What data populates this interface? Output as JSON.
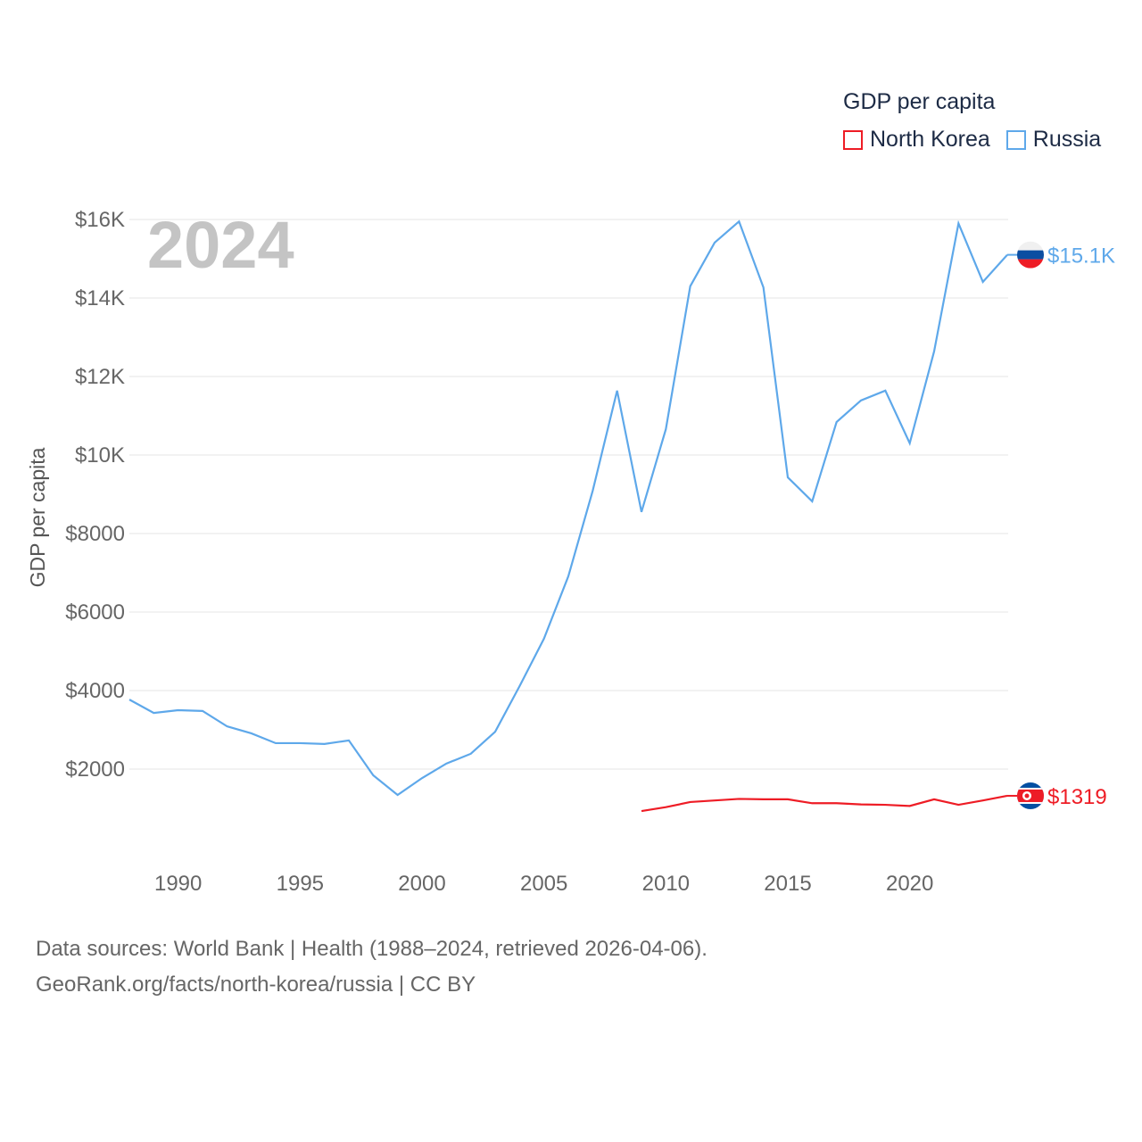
{
  "legend": {
    "title": "GDP per capita",
    "items": [
      {
        "label": "North Korea",
        "color": "#ee1c25"
      },
      {
        "label": "Russia",
        "color": "#5ea8ea"
      }
    ]
  },
  "footer": {
    "line1": "Data sources: World Bank | Health (1988–2024, retrieved 2026-04-06).",
    "line2": "GeoRank.org/facts/north-korea/russia | CC BY"
  },
  "chart_data": {
    "type": "line",
    "title": "GDP per capita",
    "year_label": "2024",
    "xlabel": "",
    "ylabel": "GDP per capita",
    "xlim": [
      1988,
      2024
    ],
    "ylim": [
      0,
      16000
    ],
    "grid": true,
    "legend_position": "top-right",
    "x_ticks": [
      1990,
      1995,
      2000,
      2005,
      2010,
      2015,
      2020
    ],
    "x_tick_labels": [
      "1990",
      "1995",
      "2000",
      "2005",
      "2010",
      "2015",
      "2020"
    ],
    "y_ticks": [
      2000,
      4000,
      6000,
      8000,
      10000,
      12000,
      14000,
      16000
    ],
    "y_tick_labels": [
      "$2000",
      "$4000",
      "$6000",
      "$8000",
      "$10K",
      "$12K",
      "$14K",
      "$16K"
    ],
    "series": [
      {
        "name": "Russia",
        "color": "#5ea8ea",
        "end_label": "$15.1K",
        "x": [
          1988,
          1989,
          1990,
          1991,
          1992,
          1993,
          1994,
          1995,
          1996,
          1997,
          1998,
          1999,
          2000,
          2001,
          2002,
          2003,
          2004,
          2005,
          2006,
          2007,
          2008,
          2009,
          2010,
          2011,
          2012,
          2013,
          2014,
          2015,
          2016,
          2017,
          2018,
          2019,
          2020,
          2021,
          2022,
          2023,
          2024
        ],
        "values": [
          3770,
          3430,
          3500,
          3480,
          3090,
          2910,
          2660,
          2660,
          2640,
          2730,
          1840,
          1340,
          1770,
          2140,
          2390,
          2950,
          4110,
          5320,
          6910,
          9090,
          11640,
          8550,
          10660,
          14300,
          15410,
          15950,
          14270,
          9430,
          8820,
          10840,
          11390,
          11640,
          10300,
          12640,
          15900,
          14410,
          15100
        ]
      },
      {
        "name": "North Korea",
        "color": "#ee1c25",
        "end_label": "$1319",
        "x": [
          2009,
          2010,
          2011,
          2012,
          2013,
          2014,
          2015,
          2016,
          2017,
          2018,
          2019,
          2020,
          2021,
          2022,
          2023,
          2024
        ],
        "values": [
          930,
          1030,
          1160,
          1200,
          1240,
          1230,
          1230,
          1130,
          1130,
          1100,
          1090,
          1060,
          1230,
          1090,
          1200,
          1319
        ]
      }
    ]
  }
}
